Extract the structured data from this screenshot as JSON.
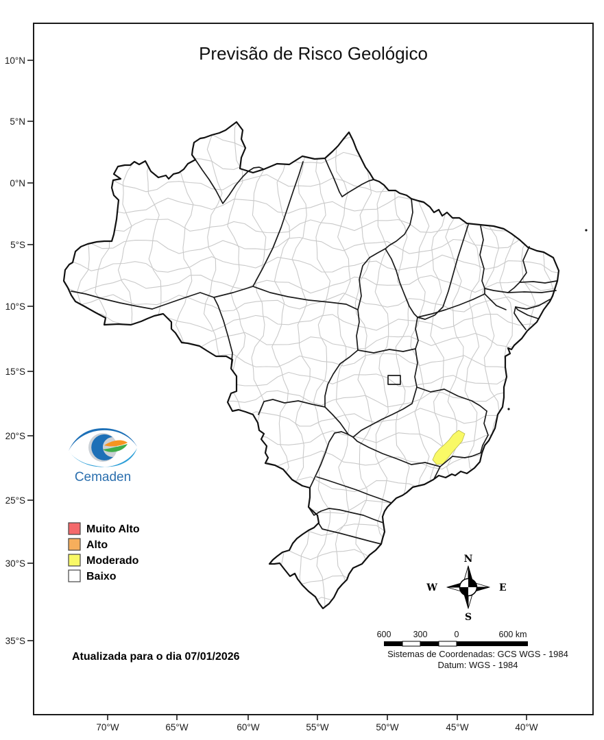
{
  "title": "Previsão de Risco Geológico",
  "axes": {
    "lat": [
      "10°N",
      "5°N",
      "0°N",
      "5°S",
      "10°S",
      "15°S",
      "20°S",
      "25°S",
      "30°S",
      "35°S"
    ],
    "lon": [
      "70°W",
      "65°W",
      "60°W",
      "55°W",
      "50°W",
      "45°W",
      "40°W"
    ]
  },
  "legend": {
    "items": [
      {
        "label": "Muito Alto",
        "color": "#f4696b"
      },
      {
        "label": "Alto",
        "color": "#f6ae5c"
      },
      {
        "label": "Moderado",
        "color": "#f9f966"
      },
      {
        "label": "Baixo",
        "color": "#ffffff"
      }
    ]
  },
  "map": {
    "highlight_region_risk": "Moderado",
    "highlight_color": "#f9f966",
    "land_color": "#ffffff",
    "state_border_color": "#1a1a1a",
    "municipality_border_color": "#c9c9c9"
  },
  "logo": {
    "text": "Cemaden",
    "colors": {
      "dark_blue": "#1d70b7",
      "light_blue": "#2d9fd8",
      "orange": "#f79421",
      "green": "#3fae49",
      "silver": "#ccd1d6",
      "text_blue": "#2b6fae"
    }
  },
  "update_note": "Atualizada para o dia 07/01/2026",
  "compass": {
    "north": "N",
    "south": "S",
    "east": "E",
    "west": "W"
  },
  "scalebar": {
    "ticks": [
      "600",
      "300",
      "0"
    ],
    "end_label": "600 km"
  },
  "crs": {
    "line1": "Sistemas de Coordenadas: GCS WGS - 1984",
    "line2": "Datum: WGS - 1984"
  }
}
